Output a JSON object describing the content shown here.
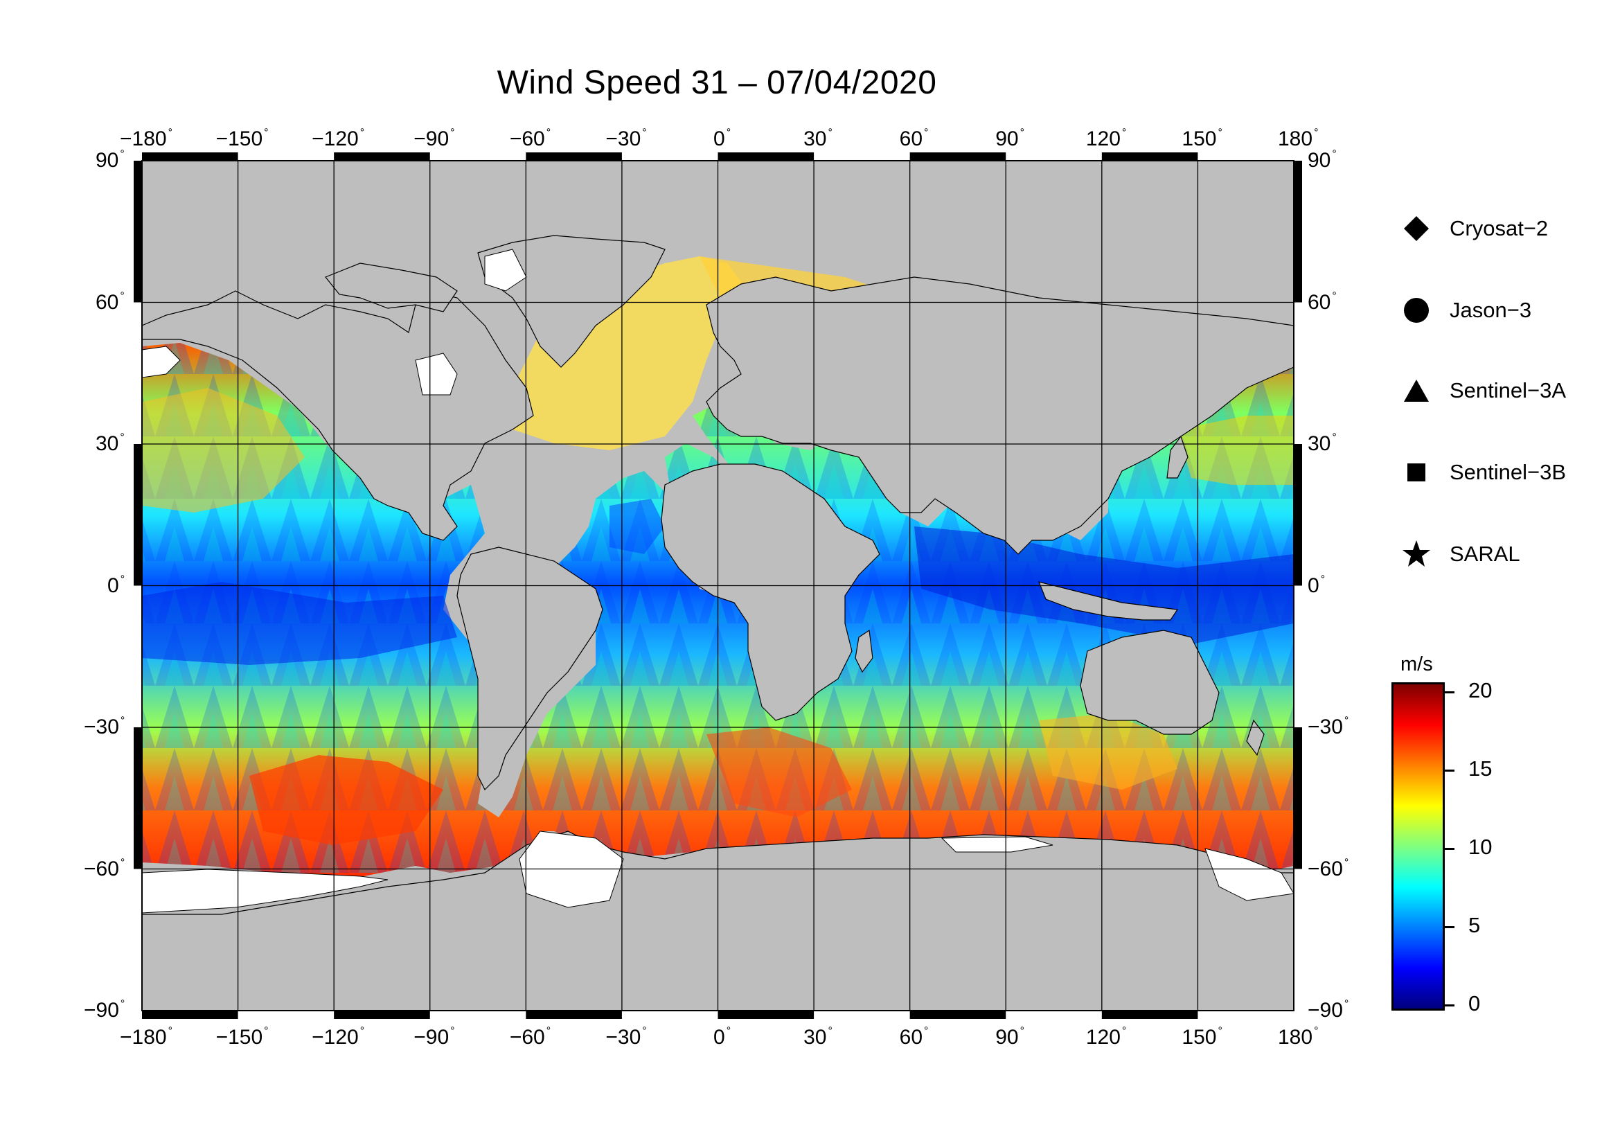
{
  "title": "Wind Speed 31 – 07/04/2020",
  "longitude_labels": [
    "−180",
    "−150",
    "−120",
    "−90",
    "−60",
    "−30",
    "0",
    "30",
    "60",
    "90",
    "120",
    "150",
    "180"
  ],
  "latitude_labels": [
    "90",
    "60",
    "30",
    "0",
    "−30",
    "−60",
    "−90"
  ],
  "degree_symbol": "°",
  "legend": [
    {
      "label": "Cryosat−2",
      "icon": "diamond-icon"
    },
    {
      "label": "Jason−3",
      "icon": "circle-icon"
    },
    {
      "label": "Sentinel−3A",
      "icon": "triangle-icon"
    },
    {
      "label": "Sentinel−3B",
      "icon": "square-icon"
    },
    {
      "label": "SARAL",
      "icon": "star-icon"
    }
  ],
  "colorbar": {
    "unit": "m/s",
    "ticks": [
      "20",
      "15",
      "10",
      "5",
      "0"
    ],
    "colors": [
      "#00007f",
      "#0000ff",
      "#007fff",
      "#00ffff",
      "#7fff7f",
      "#ffff00",
      "#ff7f00",
      "#ff0000",
      "#7f0000"
    ]
  },
  "colors": {
    "land": "#bebebe",
    "ice": "#ffffff",
    "grid": "#000000"
  }
}
